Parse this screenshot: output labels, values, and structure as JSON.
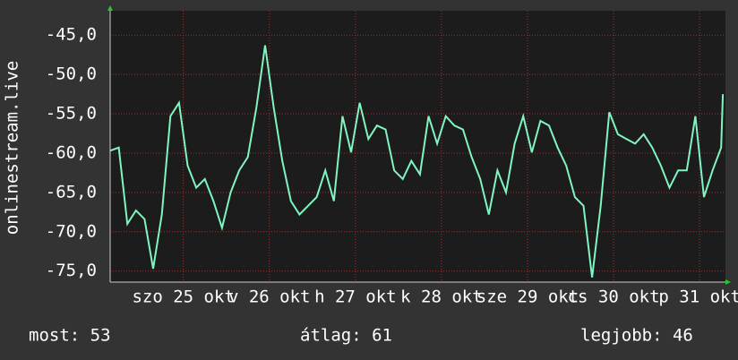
{
  "chart_data": {
    "type": "line",
    "y_label": "onlinestream.live",
    "background": "#333333",
    "plot_background": "#1c1c1c",
    "grid": true,
    "xlim": [
      24.15,
      31.3
    ],
    "xticks": [
      {
        "value": 25,
        "label": "szo 25 okt"
      },
      {
        "value": 26,
        "label": "v 26 okt"
      },
      {
        "value": 27,
        "label": "h 27 okt"
      },
      {
        "value": 28,
        "label": "k 28 okt"
      },
      {
        "value": 29,
        "label": "sze 29 okt"
      },
      {
        "value": 30,
        "label": "cs 30 okt"
      },
      {
        "value": 31,
        "label": "p 31 okt"
      }
    ],
    "ylim": [
      -76.4,
      -41.9
    ],
    "yticks": [
      {
        "value": -45,
        "label": "-45,0"
      },
      {
        "value": -50,
        "label": "-50,0"
      },
      {
        "value": -55,
        "label": "-55,0"
      },
      {
        "value": -60,
        "label": "-60,0"
      },
      {
        "value": -65,
        "label": "-65,0"
      },
      {
        "value": -70,
        "label": "-70,0"
      },
      {
        "value": -75,
        "label": "-75,0"
      }
    ],
    "x": [
      24.15,
      24.25,
      24.35,
      24.45,
      24.55,
      24.65,
      24.75,
      24.85,
      24.95,
      25.05,
      25.15,
      25.25,
      25.35,
      25.45,
      25.55,
      25.65,
      25.75,
      25.85,
      25.95,
      26.05,
      26.15,
      26.25,
      26.35,
      26.45,
      26.55,
      26.65,
      26.75,
      26.85,
      26.95,
      27.05,
      27.15,
      27.25,
      27.35,
      27.45,
      27.55,
      27.65,
      27.75,
      27.85,
      27.95,
      28.05,
      28.15,
      28.25,
      28.35,
      28.45,
      28.55,
      28.65,
      28.75,
      28.85,
      28.95,
      29.05,
      29.15,
      29.25,
      29.35,
      29.45,
      29.55,
      29.65,
      29.75,
      29.85,
      29.95,
      30.05,
      30.15,
      30.25,
      30.35,
      30.45,
      30.55,
      30.65,
      30.75,
      30.85,
      30.95,
      31.05,
      31.15,
      31.25,
      31.27
    ],
    "series": [
      {
        "color": "#7ff5c0",
        "values": [
          -59.7,
          -59.3,
          -69.0,
          -67.3,
          -68.4,
          -74.7,
          -67.8,
          -55.3,
          -53.6,
          -61.6,
          -64.4,
          -63.3,
          -66.1,
          -69.5,
          -65.0,
          -62.2,
          -60.5,
          -54.2,
          -46.3,
          -54.2,
          -61.0,
          -66.1,
          -67.8,
          -66.7,
          -65.6,
          -62.2,
          -66.1,
          -55.3,
          -59.9,
          -53.6,
          -58.2,
          -56.5,
          -57.0,
          -62.2,
          -63.3,
          -61.0,
          -62.7,
          -55.3,
          -58.8,
          -55.3,
          -56.5,
          -57.0,
          -60.5,
          -63.3,
          -67.8,
          -62.2,
          -65.0,
          -58.8,
          -55.3,
          -59.9,
          -55.9,
          -56.5,
          -59.3,
          -61.6,
          -65.6,
          -66.7,
          -75.8,
          -66.7,
          -54.8,
          -57.6,
          -58.2,
          -58.8,
          -57.6,
          -59.3,
          -61.6,
          -64.4,
          -62.2,
          -62.2,
          -55.3,
          -65.6,
          -62.2,
          -59.3,
          -52.5
        ]
      }
    ],
    "footer": [
      "most: 53",
      "átlag: 61",
      "legjobb: 46"
    ]
  }
}
